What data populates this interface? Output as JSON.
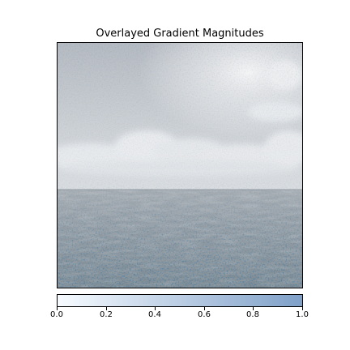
{
  "title": "Overlayed Gradient Magnitudes",
  "colors": {
    "sky_top": "#b9bfc6",
    "sky_bright": "#f2f3f5",
    "cloud": "#e8ecf0",
    "sea_far": "#9aa3ab",
    "sea_near": "#7e8c98",
    "overlay_low": "#f7fbff",
    "overlay_high": "#08306b",
    "colorbar_low": "#f7fbff",
    "colorbar_high": "#7fa0c8"
  },
  "colorbar": {
    "ticks": [
      {
        "value": 0.0,
        "label": "0.0"
      },
      {
        "value": 0.2,
        "label": "0.2"
      },
      {
        "value": 0.4,
        "label": "0.4"
      },
      {
        "value": 0.6,
        "label": "0.6"
      },
      {
        "value": 0.8,
        "label": "0.8"
      },
      {
        "value": 1.0,
        "label": "1.0"
      }
    ],
    "range": [
      0,
      1
    ]
  }
}
